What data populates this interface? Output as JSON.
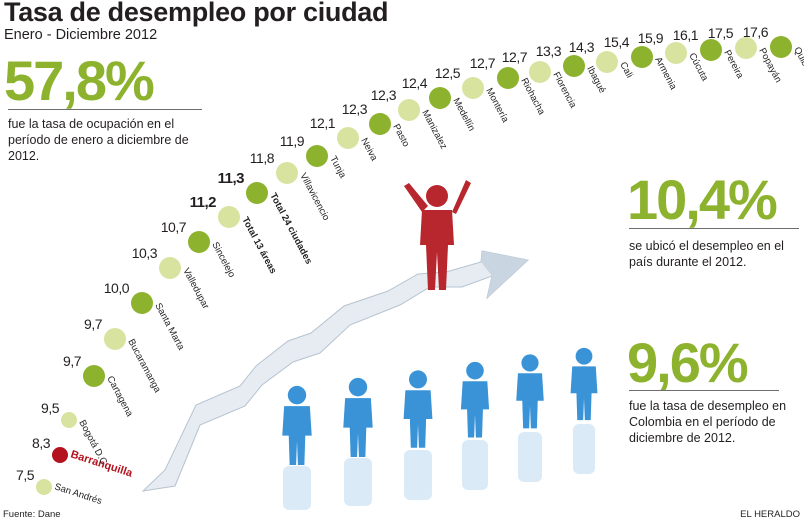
{
  "title": "Tasa de desempleo por ciudad",
  "subtitle": "Enero - Diciembre 2012",
  "stats": [
    {
      "value": "57,8%",
      "text": "fue la tasa de ocupación en el período de enero a diciembre de 2012."
    },
    {
      "value": "10,4%",
      "text": "se ubicó el desempleo  en el país durante el 2012."
    },
    {
      "value": "9,6%",
      "text": "fue la tasa de desempleo en Colombia en el período de diciembre de 2012."
    }
  ],
  "footer": {
    "source": "Fuente: Dane",
    "brand": "EL HERALDO"
  },
  "colors": {
    "dark_green": "#8cb22e",
    "light_green": "#d9e3a0",
    "highlight_red": "#b3121e",
    "figure_red": "#b8262e",
    "figure_blue": "#3a93d6",
    "arrow": "#e6ecf2"
  },
  "chart_data": {
    "type": "scatter",
    "title": "Tasa de desempleo por ciudad",
    "subtitle": "Enero - Diciembre 2012",
    "categories": [
      "San Andrés",
      "Barranquilla",
      "Bogotá D.C",
      "Cartagena",
      "Bucaramanga",
      "Santa Marta",
      "Valledupar",
      "Sincelejo",
      "Total 13 áreas",
      "Total 24 ciudades",
      "Villavicencio",
      "Tunja",
      "Neiva",
      "Pasto",
      "Manizalez",
      "Medellín",
      "Montería",
      "Riohacha",
      "Florencia",
      "Ibagué",
      "Cali",
      "Armenia",
      "Cúcuta",
      "Pereira",
      "Popayán",
      "Quibdó"
    ],
    "labels": [
      "7,5",
      "8,3",
      "9,5",
      "9,7",
      "9,7",
      "10,0",
      "10,3",
      "10,7",
      "11,2",
      "11,3",
      "11,8",
      "11,9",
      "12,1",
      "12,3",
      "12,3",
      "12,4",
      "12,5",
      "12,7",
      "12,7",
      "13,3",
      "14,3",
      "15,4",
      "15,9",
      "16,1",
      "17,5",
      "17,6"
    ],
    "values": [
      7.5,
      8.3,
      9.5,
      9.7,
      9.7,
      10.0,
      10.3,
      10.7,
      11.2,
      11.3,
      11.8,
      11.9,
      12.1,
      12.3,
      12.3,
      12.4,
      12.5,
      12.7,
      12.7,
      13.3,
      14.3,
      15.4,
      15.9,
      16.1,
      17.5,
      17.6
    ],
    "highlight": "Barranquilla",
    "bold": [
      "Total 13 áreas",
      "Total 24 ciudades"
    ],
    "grid": false,
    "legend": "none"
  }
}
